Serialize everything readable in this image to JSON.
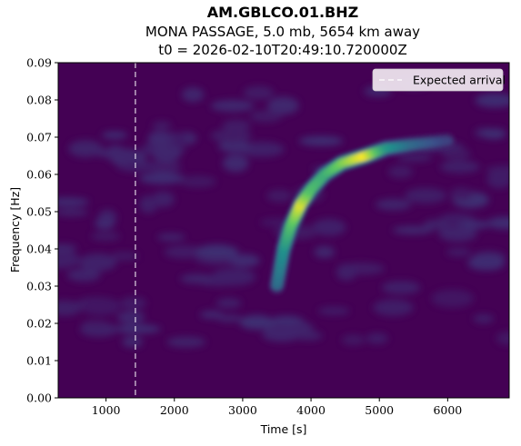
{
  "chart_data": {
    "type": "heatmap",
    "title": "AM.GBLCO.01.BHZ",
    "subtitle": "MONA PASSAGE, 5.0 mb, 5654 km away",
    "subtitle2": "t0 = 2026-02-10T20:49:10.720000Z",
    "xlabel": "Time [s]",
    "ylabel": "Frequency [Hz]",
    "xlim": [
      300,
      6900
    ],
    "ylim": [
      0,
      0.09
    ],
    "x_ticks": [
      1000,
      2000,
      3000,
      4000,
      5000,
      6000
    ],
    "x_tick_labels": [
      "1000",
      "2000",
      "3000",
      "4000",
      "5000",
      "6000"
    ],
    "y_ticks": [
      0,
      0.01,
      0.02,
      0.03,
      0.04,
      0.05,
      0.06,
      0.07,
      0.08,
      0.09
    ],
    "y_tick_labels": [
      "0.00",
      "0.01",
      "0.02",
      "0.03",
      "0.04",
      "0.05",
      "0.06",
      "0.07",
      "0.08",
      "0.09"
    ],
    "colormap": "viridis",
    "expected_arrival_time": 1430,
    "legend": {
      "label": "Expected arrival",
      "placement": "top-right"
    },
    "dispersion_curve": [
      {
        "t": 3500,
        "f": 0.03,
        "amp": 0.35
      },
      {
        "t": 3600,
        "f": 0.04,
        "amp": 0.5
      },
      {
        "t": 3700,
        "f": 0.046,
        "amp": 0.68
      },
      {
        "t": 3850,
        "f": 0.052,
        "amp": 0.95
      },
      {
        "t": 4000,
        "f": 0.056,
        "amp": 0.7
      },
      {
        "t": 4200,
        "f": 0.06,
        "amp": 0.62
      },
      {
        "t": 4450,
        "f": 0.063,
        "amp": 0.78
      },
      {
        "t": 4800,
        "f": 0.065,
        "amp": 1.0
      },
      {
        "t": 5100,
        "f": 0.067,
        "amp": 0.55
      },
      {
        "t": 5500,
        "f": 0.068,
        "amp": 0.35
      },
      {
        "t": 6000,
        "f": 0.069,
        "amp": 0.2
      }
    ],
    "colors": {
      "background": "#440154",
      "arrival_line": "#ffffff",
      "legend_bg": "#f2e9f2"
    }
  }
}
